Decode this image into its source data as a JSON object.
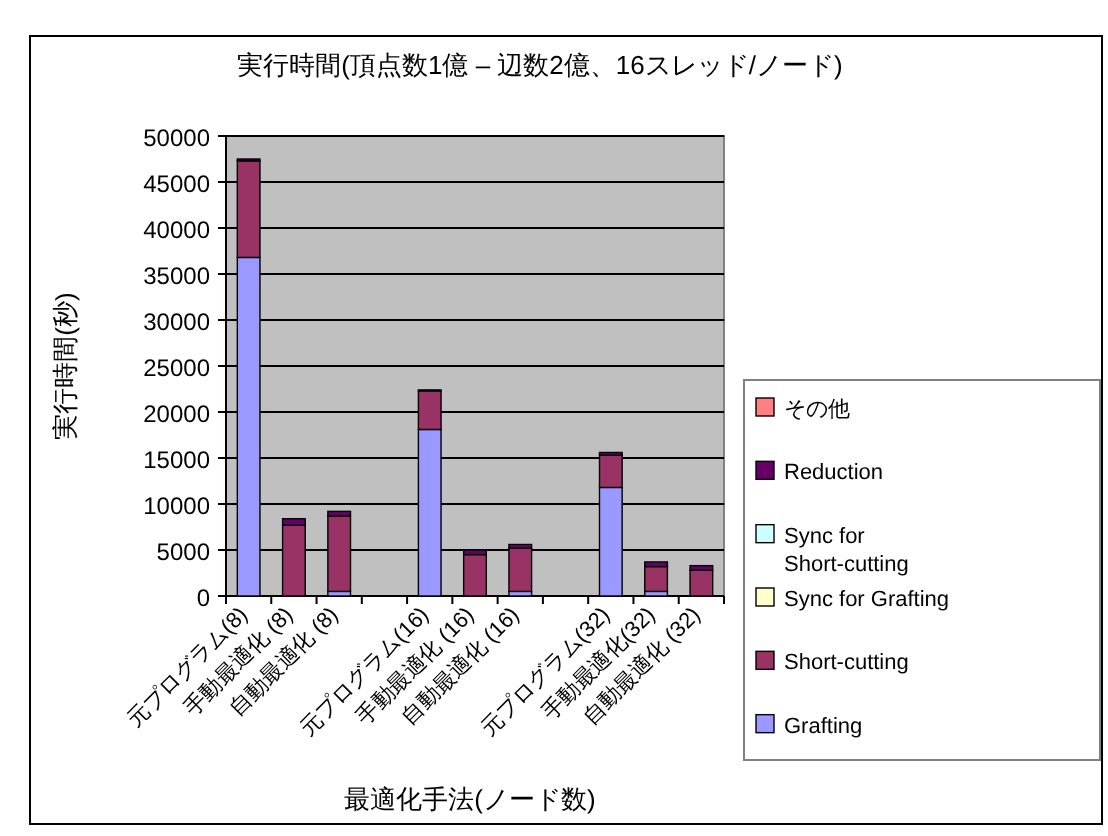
{
  "chart_data": {
    "type": "bar",
    "stacked": true,
    "title": "実行時間(頂点数1億 – 辺数2億、16スレッド/ノード)",
    "xlabel": "最適化手法(ノード数)",
    "ylabel": "実行時間(秒)",
    "categories": [
      "元プログラム(8)",
      "手動最適化 (8)",
      "自動最適化 (8)",
      null,
      "元プログラム(16)",
      "手動最適化 (16)",
      "自動最適化 (16)",
      null,
      "元プログラム(32)",
      "手動最適化(32)",
      "自動最適化 (32)"
    ],
    "series": [
      {
        "name": "Grafting",
        "color": "#9999ff",
        "values": [
          36800,
          0,
          500,
          null,
          18100,
          0,
          500,
          null,
          11800,
          500,
          0
        ]
      },
      {
        "name": "Short-cutting",
        "color": "#993366",
        "values": [
          10500,
          7700,
          8200,
          null,
          4200,
          4500,
          4700,
          null,
          3500,
          2700,
          2800
        ]
      },
      {
        "name": "Sync for Grafting",
        "color": "#ffffcc",
        "values": [
          0,
          0,
          0,
          null,
          0,
          0,
          0,
          null,
          0,
          0,
          0
        ]
      },
      {
        "name": "Sync for Short-cutting",
        "color": "#ccffff",
        "values": [
          0,
          0,
          0,
          null,
          0,
          0,
          0,
          null,
          0,
          0,
          0
        ]
      },
      {
        "name": "Reduction",
        "color": "#660066",
        "values": [
          200,
          700,
          500,
          null,
          100,
          500,
          400,
          null,
          300,
          500,
          500
        ]
      },
      {
        "name": "その他",
        "color": "#ff8080",
        "values": [
          0,
          0,
          0,
          null,
          0,
          0,
          0,
          null,
          0,
          0,
          0
        ]
      }
    ],
    "ylim": [
      0,
      50000
    ],
    "yticks": [
      0,
      5000,
      10000,
      15000,
      20000,
      25000,
      30000,
      35000,
      40000,
      45000,
      50000
    ],
    "grid": "y",
    "legend": "right"
  }
}
